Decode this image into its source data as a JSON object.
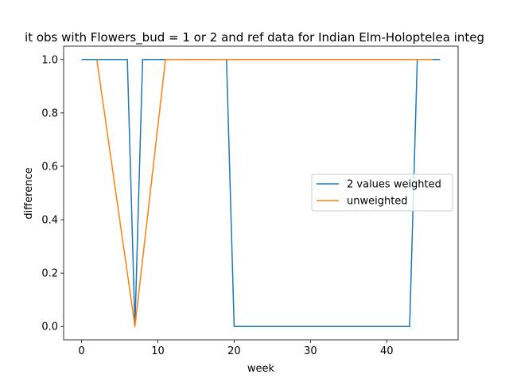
{
  "chart_data": {
    "type": "line",
    "title": "it obs with Flowers_bud = 1 or 2 and ref data for Indian Elm-Holoptelea integ",
    "xlabel": "week",
    "ylabel": "difference",
    "xlim": [
      -2.35,
      49.35
    ],
    "ylim": [
      -0.05,
      1.05
    ],
    "xticks": [
      0,
      10,
      20,
      30,
      40
    ],
    "yticks": [
      0.0,
      0.2,
      0.4,
      0.6,
      0.8,
      1.0
    ],
    "xtick_labels": [
      "0",
      "10",
      "20",
      "30",
      "40"
    ],
    "ytick_labels": [
      "0.0",
      "0.2",
      "0.4",
      "0.6",
      "0.8",
      "1.0"
    ],
    "grid": false,
    "legend_position": "center-right",
    "series": [
      {
        "name": "2 values weighted",
        "color": "#1f77b4",
        "x": [
          0,
          1,
          2,
          3,
          4,
          5,
          6,
          7,
          8,
          9,
          10,
          11,
          12,
          13,
          14,
          15,
          16,
          17,
          18,
          19,
          20,
          21,
          22,
          23,
          24,
          25,
          26,
          27,
          28,
          29,
          30,
          31,
          32,
          33,
          34,
          35,
          36,
          37,
          38,
          39,
          40,
          41,
          42,
          43,
          44,
          45,
          46,
          47
        ],
        "y": [
          1,
          1,
          1,
          1,
          1,
          1,
          1,
          0,
          1,
          1,
          1,
          1,
          1,
          1,
          1,
          1,
          1,
          1,
          1,
          1,
          0,
          0,
          0,
          0,
          0,
          0,
          0,
          0,
          0,
          0,
          0,
          0,
          0,
          0,
          0,
          0,
          0,
          0,
          0,
          0,
          0,
          0,
          0,
          0,
          1,
          1,
          1,
          1
        ]
      },
      {
        "name": "unweighted",
        "color": "#ff7f0e",
        "x": [
          2,
          7,
          11,
          46
        ],
        "y": [
          1,
          0,
          1,
          1
        ]
      }
    ]
  }
}
